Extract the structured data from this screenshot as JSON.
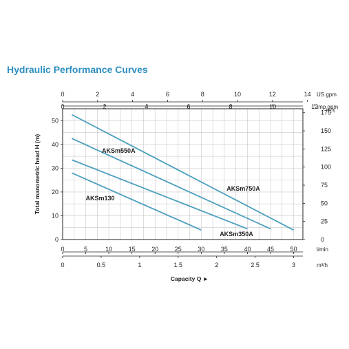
{
  "title": "Hydraulic Performance Curves",
  "colors": {
    "title": "#2b8fbf",
    "curve": "#4a9fbf",
    "grid": "#c8c8c8",
    "axis": "#222222"
  },
  "chart_data": {
    "type": "line",
    "title": "Hydraulic Performance Curves",
    "x_axis": {
      "label": "Capacity Q ►",
      "scales": [
        {
          "unit": "US gpm",
          "position": "top-outer",
          "ticks": [
            0,
            2,
            4,
            6,
            8,
            10,
            12,
            14
          ]
        },
        {
          "unit": "Imp gpm",
          "position": "top-inner",
          "ticks": [
            0,
            2,
            4,
            6,
            8,
            10,
            12
          ]
        },
        {
          "unit": "l/min",
          "position": "bottom-inner",
          "ticks": [
            0,
            5,
            10,
            15,
            20,
            25,
            30,
            35,
            40,
            45,
            50
          ]
        },
        {
          "unit": "m³/h",
          "position": "bottom-outer",
          "ticks": [
            0,
            0.5,
            1,
            1.5,
            2,
            2.5,
            3
          ],
          "tick_labels": [
            "0",
            "0.5",
            "1",
            "1.5",
            "2",
            "2.5",
            "3"
          ]
        }
      ]
    },
    "y_axis": {
      "label": "Total manometric head H (m)",
      "ticks": [
        0,
        10,
        20,
        30,
        40,
        50
      ],
      "ylim": [
        0,
        55
      ]
    },
    "y2_axis": {
      "unit": "H (ft)",
      "ticks": [
        0,
        25,
        50,
        75,
        100,
        125,
        150,
        175
      ]
    },
    "xlim_lmin": [
      0,
      52
    ],
    "grid": true,
    "series": [
      {
        "name": "AKSm130",
        "x": [
          2,
          30
        ],
        "y": [
          28,
          4
        ]
      },
      {
        "name": "AKSm350A",
        "x": [
          2,
          40
        ],
        "y": [
          33.5,
          4.5
        ]
      },
      {
        "name": "AKSm550A",
        "x": [
          2,
          45
        ],
        "y": [
          42.5,
          4.5
        ]
      },
      {
        "name": "AKSm750A",
        "x": [
          2,
          50
        ],
        "y": [
          52.5,
          4
        ]
      }
    ],
    "series_labels": [
      {
        "text": "AKSm550A",
        "x": 8.5,
        "y": 36.5
      },
      {
        "text": "AKSm750A",
        "x": 35.5,
        "y": 20.5
      },
      {
        "text": "AKSm130",
        "x": 5,
        "y": 16.5
      },
      {
        "text": "AKSm350A",
        "x": 34,
        "y": 1.5
      }
    ]
  }
}
